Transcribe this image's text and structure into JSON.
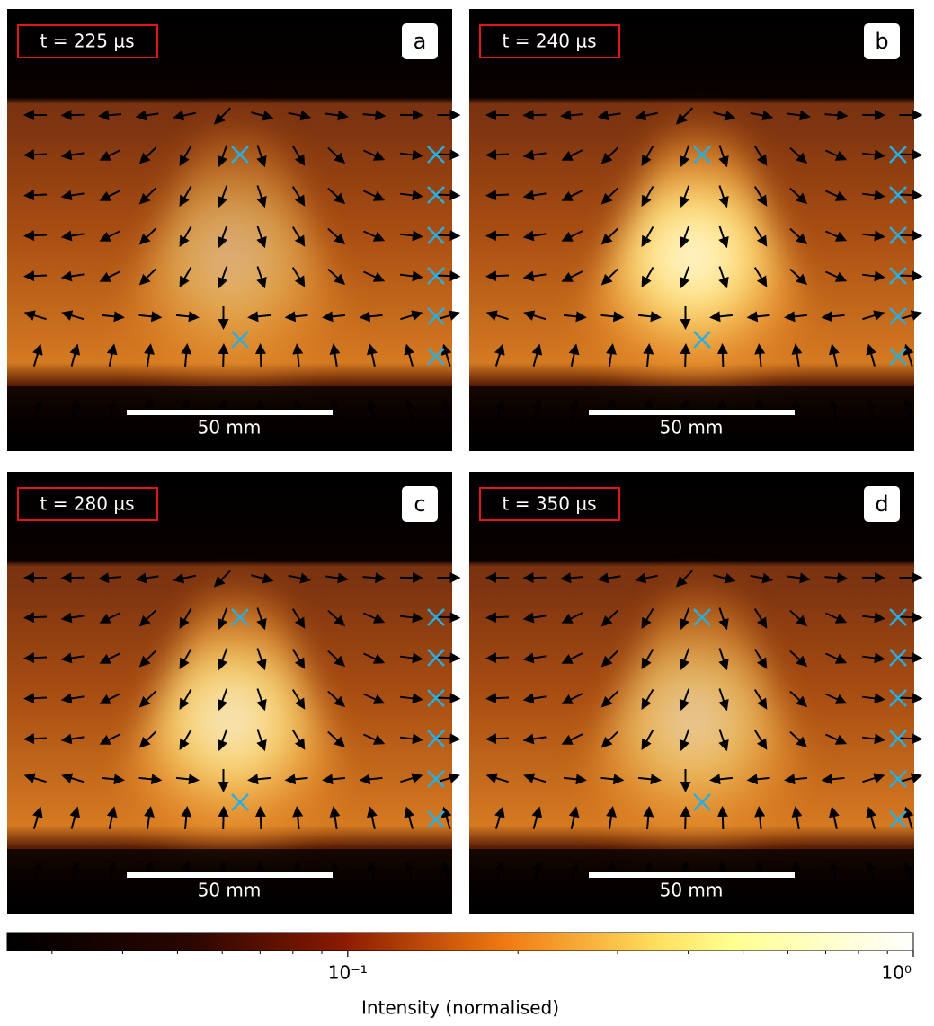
{
  "chart_data": {
    "type": "image",
    "panels": [
      {
        "letter": "a",
        "time": "t = 225 µs",
        "scale_bar": "50 mm"
      },
      {
        "letter": "b",
        "time": "t = 240 µs",
        "scale_bar": "50 mm"
      },
      {
        "letter": "c",
        "time": "t = 280 µs",
        "scale_bar": "50 mm"
      },
      {
        "letter": "d",
        "time": "t = 350 µs",
        "scale_bar": "50 mm"
      }
    ],
    "colorbar": {
      "label": "Intensity (normalised)",
      "log_scale": true,
      "xlim": [
        0.025,
        1
      ],
      "xticks": [
        {
          "value": 0.1,
          "label": "10⁻¹"
        },
        {
          "value": 1,
          "label": "10⁰"
        }
      ],
      "minor_ticks": [
        0.03,
        0.04,
        0.05,
        0.06,
        0.07,
        0.08,
        0.09,
        0.2,
        0.3,
        0.4,
        0.5,
        0.6,
        0.7,
        0.8,
        0.9
      ]
    }
  }
}
